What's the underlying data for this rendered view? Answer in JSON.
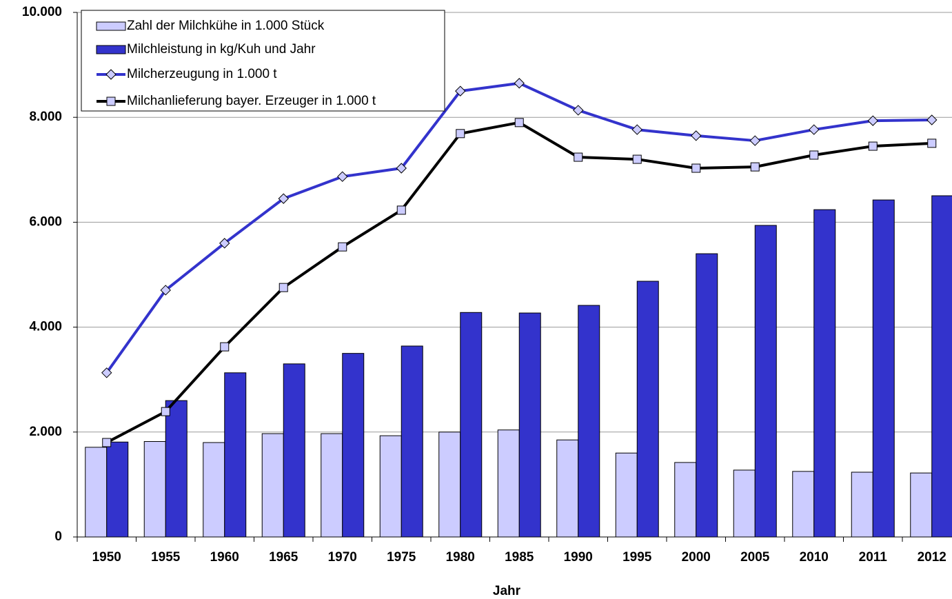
{
  "chart_data": {
    "type": "bar",
    "x_label": "Jahr",
    "categories": [
      "1950",
      "1955",
      "1960",
      "1965",
      "1970",
      "1975",
      "1980",
      "1985",
      "1990",
      "1995",
      "2000",
      "2005",
      "2010",
      "2011",
      "2012"
    ],
    "series": [
      {
        "name": "Zahl der Milchkühe in 1.000 Stück",
        "type": "bar",
        "color": "#ccccff",
        "values": [
          1710,
          1820,
          1800,
          1970,
          1970,
          1930,
          2000,
          2040,
          1850,
          1600,
          1420,
          1275,
          1250,
          1235,
          1220
        ]
      },
      {
        "name": "Milchleistung in kg/Kuh und Jahr",
        "type": "bar",
        "color": "#3333cc",
        "values": [
          1810,
          2600,
          3130,
          3300,
          3500,
          3640,
          4280,
          4270,
          4415,
          4875,
          5400,
          5940,
          6240,
          6425,
          6505
        ]
      },
      {
        "name": "Milcherzeugung in 1.000 t",
        "type": "line",
        "color": "#3333cc",
        "marker": "diamond",
        "marker_color": "#ccccff",
        "values": [
          3130,
          4705,
          5600,
          6450,
          6870,
          7030,
          8500,
          8650,
          8135,
          7765,
          7650,
          7555,
          7765,
          7935,
          7950
        ]
      },
      {
        "name": "Milchanlieferung bayer. Erzeuger in 1.000 t",
        "type": "line",
        "color": "#000000",
        "marker": "square",
        "marker_color": "#ccccff",
        "values": [
          1800,
          2390,
          3625,
          4755,
          5530,
          6230,
          7690,
          7900,
          7240,
          7200,
          7030,
          7055,
          7280,
          7450,
          7505
        ]
      }
    ],
    "ylim": [
      0,
      10000
    ],
    "yticks": [
      {
        "value": 0,
        "label": "0"
      },
      {
        "value": 2000,
        "label": "2.000"
      },
      {
        "value": 4000,
        "label": "4.000"
      },
      {
        "value": 6000,
        "label": "6.000"
      },
      {
        "value": 8000,
        "label": "8.000"
      },
      {
        "value": 10000,
        "label": "10.000"
      }
    ],
    "grid": true,
    "legend": "top-left"
  }
}
